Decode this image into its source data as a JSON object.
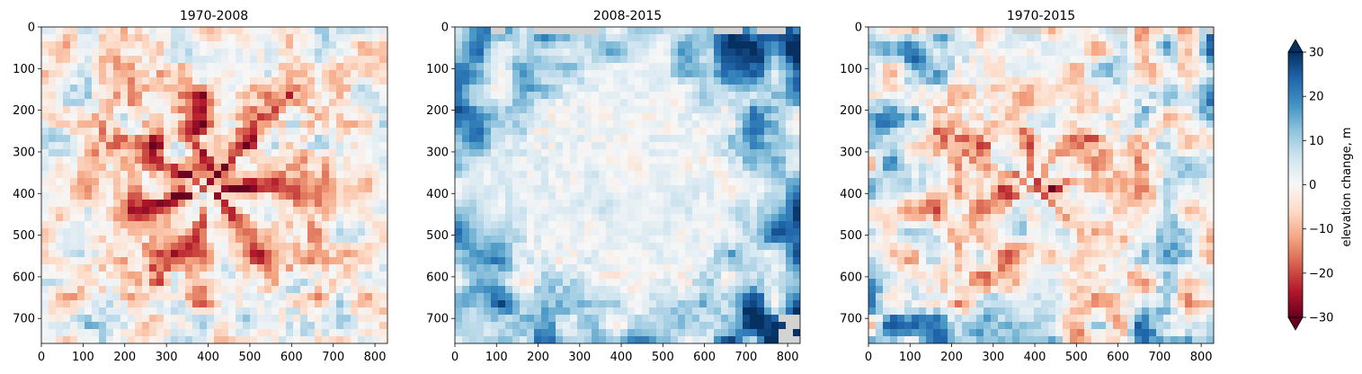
{
  "chart_data": [
    {
      "type": "heatmap",
      "title": "1970-2008",
      "xlabel": "",
      "ylabel": "",
      "xlim": [
        0,
        830
      ],
      "ylim": [
        760,
        0
      ],
      "x_ticks": [
        "0",
        "100",
        "200",
        "300",
        "400",
        "500",
        "600",
        "700",
        "800"
      ],
      "y_ticks": [
        "0",
        "100",
        "200",
        "300",
        "400",
        "500",
        "600",
        "700"
      ],
      "x_tick_values": [
        0,
        100,
        200,
        300,
        400,
        500,
        600,
        700,
        800
      ],
      "y_tick_values": [
        0,
        100,
        200,
        300,
        400,
        500,
        600,
        700
      ],
      "pattern": "mostly-loss",
      "nodata_color": "#d3d3d3"
    },
    {
      "type": "heatmap",
      "title": "2008-2015",
      "xlabel": "",
      "ylabel": "",
      "xlim": [
        0,
        830
      ],
      "ylim": [
        760,
        0
      ],
      "x_ticks": [
        "0",
        "100",
        "200",
        "300",
        "400",
        "500",
        "600",
        "700",
        "800"
      ],
      "y_ticks": [
        "0",
        "100",
        "200",
        "300",
        "400",
        "500",
        "600",
        "700"
      ],
      "x_tick_values": [
        0,
        100,
        200,
        300,
        400,
        500,
        600,
        700,
        800
      ],
      "y_tick_values": [
        0,
        100,
        200,
        300,
        400,
        500,
        600,
        700
      ],
      "pattern": "mostly-gain",
      "nodata_color": "#d3d3d3"
    },
    {
      "type": "heatmap",
      "title": "1970-2015",
      "xlabel": "",
      "ylabel": "",
      "xlim": [
        0,
        830
      ],
      "ylim": [
        760,
        0
      ],
      "x_ticks": [
        "0",
        "100",
        "200",
        "300",
        "400",
        "500",
        "600",
        "700",
        "800"
      ],
      "y_ticks": [
        "0",
        "100",
        "200",
        "300",
        "400",
        "500",
        "600",
        "700"
      ],
      "x_tick_values": [
        0,
        100,
        200,
        300,
        400,
        500,
        600,
        700,
        800
      ],
      "y_tick_values": [
        0,
        100,
        200,
        300,
        400,
        500,
        600,
        700
      ],
      "pattern": "mixed",
      "nodata_color": "#d3d3d3"
    }
  ],
  "colorbar": {
    "label": "elevation change, m",
    "colormap": "RdBu",
    "range": [
      -30,
      30
    ],
    "ticks": [
      "30",
      "20",
      "10",
      "0",
      "−10",
      "−20",
      "−30"
    ],
    "tick_values": [
      30,
      20,
      10,
      0,
      -10,
      -20,
      -30
    ],
    "extend": "both",
    "colors": [
      "#67001f",
      "#b2182b",
      "#d6604d",
      "#f4a582",
      "#fddbc7",
      "#f7f7f7",
      "#d1e5f0",
      "#92c5de",
      "#4393c3",
      "#2166ac",
      "#053061"
    ]
  }
}
